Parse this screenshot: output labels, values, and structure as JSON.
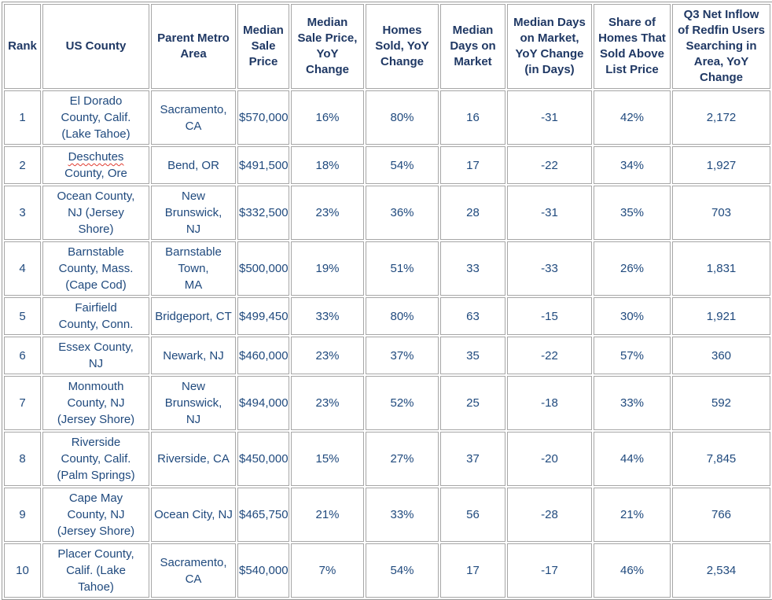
{
  "colors": {
    "header_text": "#1f3864",
    "body_text": "#1f497d",
    "border": "#a6a6a6",
    "border_dark": "#9a9a9a",
    "squiggle": "#e03c31",
    "background": "#ffffff"
  },
  "table": {
    "spellcheck": {
      "flagged_word": "Deschutes"
    },
    "columns": [
      {
        "id": "rank",
        "label": "Rank"
      },
      {
        "id": "county",
        "label": "US County"
      },
      {
        "id": "metro",
        "label": "Parent Metro\nArea"
      },
      {
        "id": "price",
        "label": "Median\nSale\nPrice"
      },
      {
        "id": "price_yoy",
        "label": "Median\nSale Price,\nYoY\nChange"
      },
      {
        "id": "homes_sold_yoy",
        "label": "Homes\nSold, YoY\nChange"
      },
      {
        "id": "days_on_market",
        "label": "Median\nDays on\nMarket"
      },
      {
        "id": "days_yoy",
        "label": "Median Days\non Market,\nYoY Change\n(in Days)"
      },
      {
        "id": "above_list",
        "label": "Share of\nHomes That\nSold Above\nList Price"
      },
      {
        "id": "inflow",
        "label": "Q3 Net Inflow\nof Redfin Users\nSearching in\nArea, YoY\nChange"
      }
    ],
    "rows": [
      {
        "rank": "1",
        "county": "El Dorado\nCounty, Calif.\n(Lake Tahoe)",
        "metro": "Sacramento,\nCA",
        "price": "$570,000",
        "price_yoy": "16%",
        "homes_sold_yoy": "80%",
        "days_on_market": "16",
        "days_yoy": "-31",
        "above_list": "42%",
        "inflow": "2,172"
      },
      {
        "rank": "2",
        "county": "Deschutes\nCounty, Ore",
        "metro": "Bend, OR",
        "price": "$491,500",
        "price_yoy": "18%",
        "homes_sold_yoy": "54%",
        "days_on_market": "17",
        "days_yoy": "-22",
        "above_list": "34%",
        "inflow": "1,927"
      },
      {
        "rank": "3",
        "county": "Ocean County,\nNJ (Jersey\nShore)",
        "metro": "New\nBrunswick,\nNJ",
        "price": "$332,500",
        "price_yoy": "23%",
        "homes_sold_yoy": "36%",
        "days_on_market": "28",
        "days_yoy": "-31",
        "above_list": "35%",
        "inflow": "703"
      },
      {
        "rank": "4",
        "county": "Barnstable\nCounty, Mass.\n(Cape Cod)",
        "metro": "Barnstable\nTown,\nMA",
        "price": "$500,000",
        "price_yoy": "19%",
        "homes_sold_yoy": "51%",
        "days_on_market": "33",
        "days_yoy": "-33",
        "above_list": "26%",
        "inflow": "1,831"
      },
      {
        "rank": "5",
        "county": "Fairfield\nCounty, Conn.",
        "metro": "Bridgeport, CT",
        "price": "$499,450",
        "price_yoy": "33%",
        "homes_sold_yoy": "80%",
        "days_on_market": "63",
        "days_yoy": "-15",
        "above_list": "30%",
        "inflow": "1,921"
      },
      {
        "rank": "6",
        "county": "Essex County,\nNJ",
        "metro": "Newark, NJ",
        "price": "$460,000",
        "price_yoy": "23%",
        "homes_sold_yoy": "37%",
        "days_on_market": "35",
        "days_yoy": "-22",
        "above_list": "57%",
        "inflow": "360"
      },
      {
        "rank": "7",
        "county": "Monmouth\nCounty, NJ\n(Jersey Shore)",
        "metro": "New\nBrunswick,\nNJ",
        "price": "$494,000",
        "price_yoy": "23%",
        "homes_sold_yoy": "52%",
        "days_on_market": "25",
        "days_yoy": "-18",
        "above_list": "33%",
        "inflow": "592"
      },
      {
        "rank": "8",
        "county": "Riverside\nCounty, Calif.\n(Palm Springs)",
        "metro": "Riverside, CA",
        "price": "$450,000",
        "price_yoy": "15%",
        "homes_sold_yoy": "27%",
        "days_on_market": "37",
        "days_yoy": "-20",
        "above_list": "44%",
        "inflow": "7,845"
      },
      {
        "rank": "9",
        "county": "Cape May\nCounty, NJ\n(Jersey Shore)",
        "metro": "Ocean City, NJ",
        "price": "$465,750",
        "price_yoy": "21%",
        "homes_sold_yoy": "33%",
        "days_on_market": "56",
        "days_yoy": "-28",
        "above_list": "21%",
        "inflow": "766"
      },
      {
        "rank": "10",
        "county": "Placer County,\nCalif. (Lake\nTahoe)",
        "metro": "Sacramento,\nCA",
        "price": "$540,000",
        "price_yoy": "7%",
        "homes_sold_yoy": "54%",
        "days_on_market": "17",
        "days_yoy": "-17",
        "above_list": "46%",
        "inflow": "2,534"
      }
    ]
  }
}
